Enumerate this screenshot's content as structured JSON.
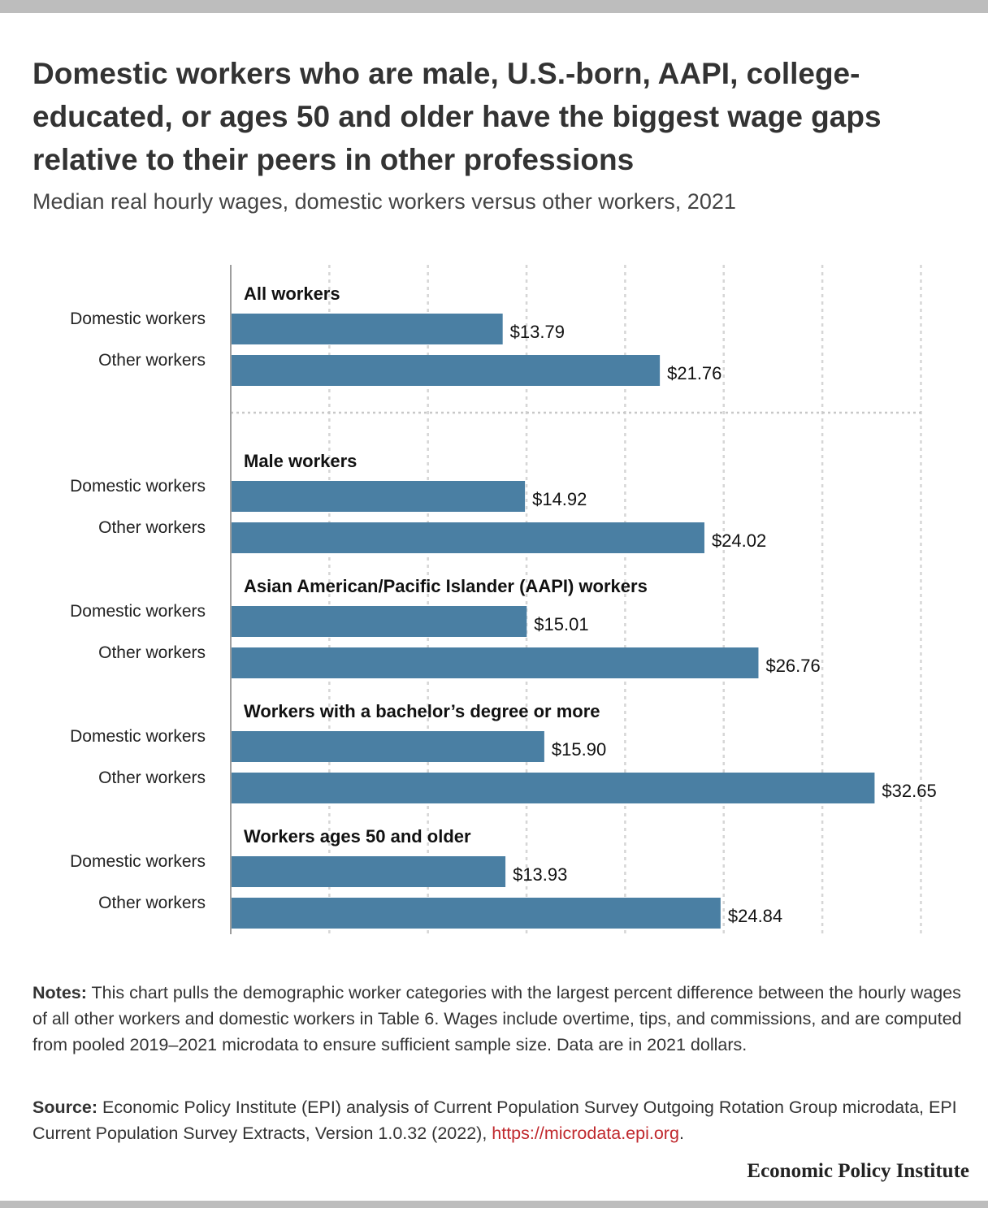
{
  "header": {
    "title": "Domestic workers who are male, U.S.-born, AAPI, college-educated, or ages 50 and older have the biggest wage gaps relative to their peers in other professions",
    "subtitle": "Median real hourly wages, domestic workers versus other workers, 2021"
  },
  "chart_data": {
    "type": "bar",
    "orientation": "horizontal",
    "title": "",
    "xlabel": "",
    "ylabel": "",
    "xlim": [
      0,
      35
    ],
    "grid": true,
    "bar_color": "#4a7fa3",
    "groups": [
      {
        "name": "All workers",
        "bars": [
          {
            "label": "Domestic workers",
            "value": 13.79,
            "display": "$13.79"
          },
          {
            "label": "Other workers",
            "value": 21.76,
            "display": "$21.76"
          }
        ]
      },
      {
        "name": "Male workers",
        "bars": [
          {
            "label": "Domestic workers",
            "value": 14.92,
            "display": "$14.92"
          },
          {
            "label": "Other workers",
            "value": 24.02,
            "display": "$24.02"
          }
        ]
      },
      {
        "name": "Asian American/Pacific Islander (AAPI) workers",
        "bars": [
          {
            "label": "Domestic workers",
            "value": 15.01,
            "display": "$15.01"
          },
          {
            "label": "Other workers",
            "value": 26.76,
            "display": "$26.76"
          }
        ]
      },
      {
        "name": "Workers with a bachelor’s degree or more",
        "bars": [
          {
            "label": "Domestic workers",
            "value": 15.9,
            "display": "$15.90"
          },
          {
            "label": "Other workers",
            "value": 32.65,
            "display": "$32.65"
          }
        ]
      },
      {
        "name": "Workers ages 50 and older",
        "bars": [
          {
            "label": "Domestic workers",
            "value": 13.93,
            "display": "$13.93"
          },
          {
            "label": "Other workers",
            "value": 24.84,
            "display": "$24.84"
          }
        ]
      }
    ]
  },
  "footer": {
    "notes_lead": "Notes:",
    "notes_text": " This chart pulls the demographic worker categories with the largest percent difference between the hourly wages of all other workers and domestic workers in Table 6. Wages include overtime, tips, and commissions, and are computed from pooled 2019–2021 microdata to ensure sufficient sample size. Data are in 2021 dollars.",
    "source_lead": "Source:",
    "source_text": " Economic Policy Institute (EPI) analysis of Current Population Survey Outgoing Rotation Group microdata, EPI Current Population Survey Extracts, Version 1.0.32 (2022), ",
    "source_link": "https://microdata.epi.org",
    "source_end": ".",
    "brand": "Economic Policy Institute"
  }
}
